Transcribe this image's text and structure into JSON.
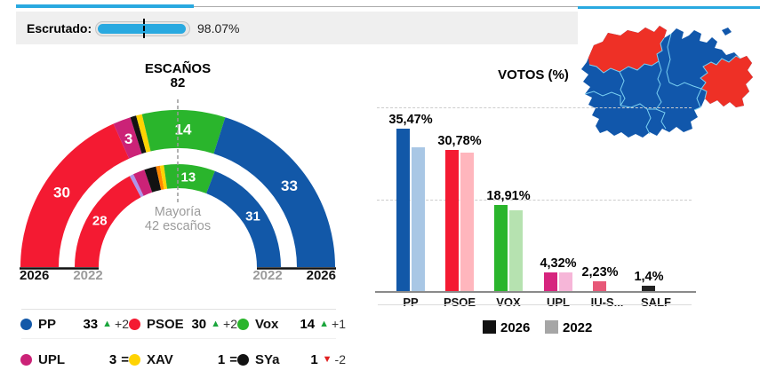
{
  "progress": {
    "label": "Escrutado:",
    "value": "98.07%",
    "percent": 98.07,
    "marker_percent": 50,
    "bar_color": "#29a9e0",
    "track_color": "#e6e6e6"
  },
  "chart_data": [
    {
      "type": "pie",
      "variant": "hemicycle-two-rings",
      "title": "ESCAÑOS",
      "total_label": "82",
      "majority_note": {
        "line1": "Mayoría",
        "line2": "42 escaños"
      },
      "axis_labels": [
        {
          "text": "2026",
          "muted": false
        },
        {
          "text": "2022",
          "muted": true
        },
        {
          "text": "2022",
          "muted": true
        },
        {
          "text": "2026",
          "muted": false
        }
      ],
      "rings": [
        {
          "year": "2026",
          "segments": [
            {
              "party": "PSOE",
              "seats": 30,
              "color": "#f41a32",
              "label": "30"
            },
            {
              "party": "UPL",
              "seats": 3,
              "color": "#cb2277",
              "label": "3"
            },
            {
              "party": "SYa",
              "seats": 1,
              "color": "#121212"
            },
            {
              "party": "XAV",
              "seats": 1,
              "color": "#ffd302"
            },
            {
              "party": "Vox",
              "seats": 14,
              "color": "#2ab52c",
              "label": "14"
            },
            {
              "party": "PP",
              "seats": 33,
              "color": "#1258a8",
              "label": "33"
            }
          ]
        },
        {
          "year": "2022",
          "segments": [
            {
              "party": "PSOE",
              "seats": 28,
              "color": "#f41a32",
              "label": "28"
            },
            {
              "party": "Podemos",
              "seats": 1,
              "color": "#ae95ea"
            },
            {
              "party": "UPL",
              "seats": 3,
              "color": "#cb2277"
            },
            {
              "party": "SYa",
              "seats": 3,
              "color": "#121212"
            },
            {
              "party": "Cs",
              "seats": 1,
              "color": "#ff8800"
            },
            {
              "party": "XAV",
              "seats": 1,
              "color": "#ffd302"
            },
            {
              "party": "Vox",
              "seats": 13,
              "color": "#2ab52c",
              "label": "13"
            },
            {
              "party": "PP",
              "seats": 31,
              "color": "#1258a8",
              "label": "31"
            }
          ]
        }
      ]
    },
    {
      "type": "bar",
      "title": "VOTOS (%)",
      "categories": [
        "PP",
        "PSOE",
        "VOX",
        "UPL",
        "IU-S...",
        "SALF"
      ],
      "series": [
        {
          "name": "2026",
          "values": [
            35.47,
            30.78,
            18.91,
            4.32,
            2.23,
            1.4
          ],
          "value_labels": [
            "35,47%",
            "30,78%",
            "18,91%",
            "4,32%",
            "2,23%",
            "1,4%"
          ],
          "colors": [
            "#1258a8",
            "#f41a32",
            "#2ab52c",
            "#d6247e",
            "#e75878",
            "#222222"
          ]
        },
        {
          "name": "2022",
          "values": [
            31.4,
            30.1,
            17.6,
            4.3,
            null,
            null
          ],
          "colors": [
            "#a9c7e5",
            "#ffb6bd",
            "#b6e2b0",
            "#f6b6d8",
            null,
            null
          ]
        }
      ],
      "ylim": [
        0,
        40
      ],
      "gridlines_pct": [
        20,
        40
      ],
      "grid": "dashed",
      "legend_position": "bottom",
      "legend": [
        {
          "label": "2026",
          "swatch": "#111111"
        },
        {
          "label": "2022",
          "swatch": "#a6a6a6"
        }
      ]
    }
  ],
  "party_legend": {
    "trend_colors": {
      "up": "#1aa53c",
      "down": "#e02020",
      "eq": "#111111"
    },
    "rows": [
      [
        {
          "party": "PP",
          "color": "#1258a8",
          "seats": "33",
          "trend": "up",
          "delta": "+2"
        },
        {
          "party": "PSOE",
          "color": "#f41a32",
          "seats": "30",
          "trend": "up",
          "delta": "+2"
        },
        {
          "party": "Vox",
          "color": "#2ab52c",
          "seats": "14",
          "trend": "up",
          "delta": "+1"
        }
      ],
      [
        {
          "party": "UPL",
          "color": "#cb2277",
          "seats": "3",
          "trend": "eq",
          "delta": ""
        },
        {
          "party": "XAV",
          "color": "#ffd302",
          "seats": "1",
          "trend": "eq",
          "delta": ""
        },
        {
          "party": "SYa",
          "color": "#121212",
          "seats": "1",
          "trend": "down",
          "delta": "-2"
        }
      ]
    ]
  },
  "map": {
    "name": "Castilla y León",
    "base_color": "#1157ab",
    "border_color": "#7ad0f2",
    "top_line_color": "#29a9e0",
    "provinces": [
      {
        "id": "leon",
        "color": "#ee3026"
      },
      {
        "id": "soria",
        "color": "#ee3026"
      },
      {
        "id": "trevino",
        "color": "#1157ab"
      }
    ]
  }
}
